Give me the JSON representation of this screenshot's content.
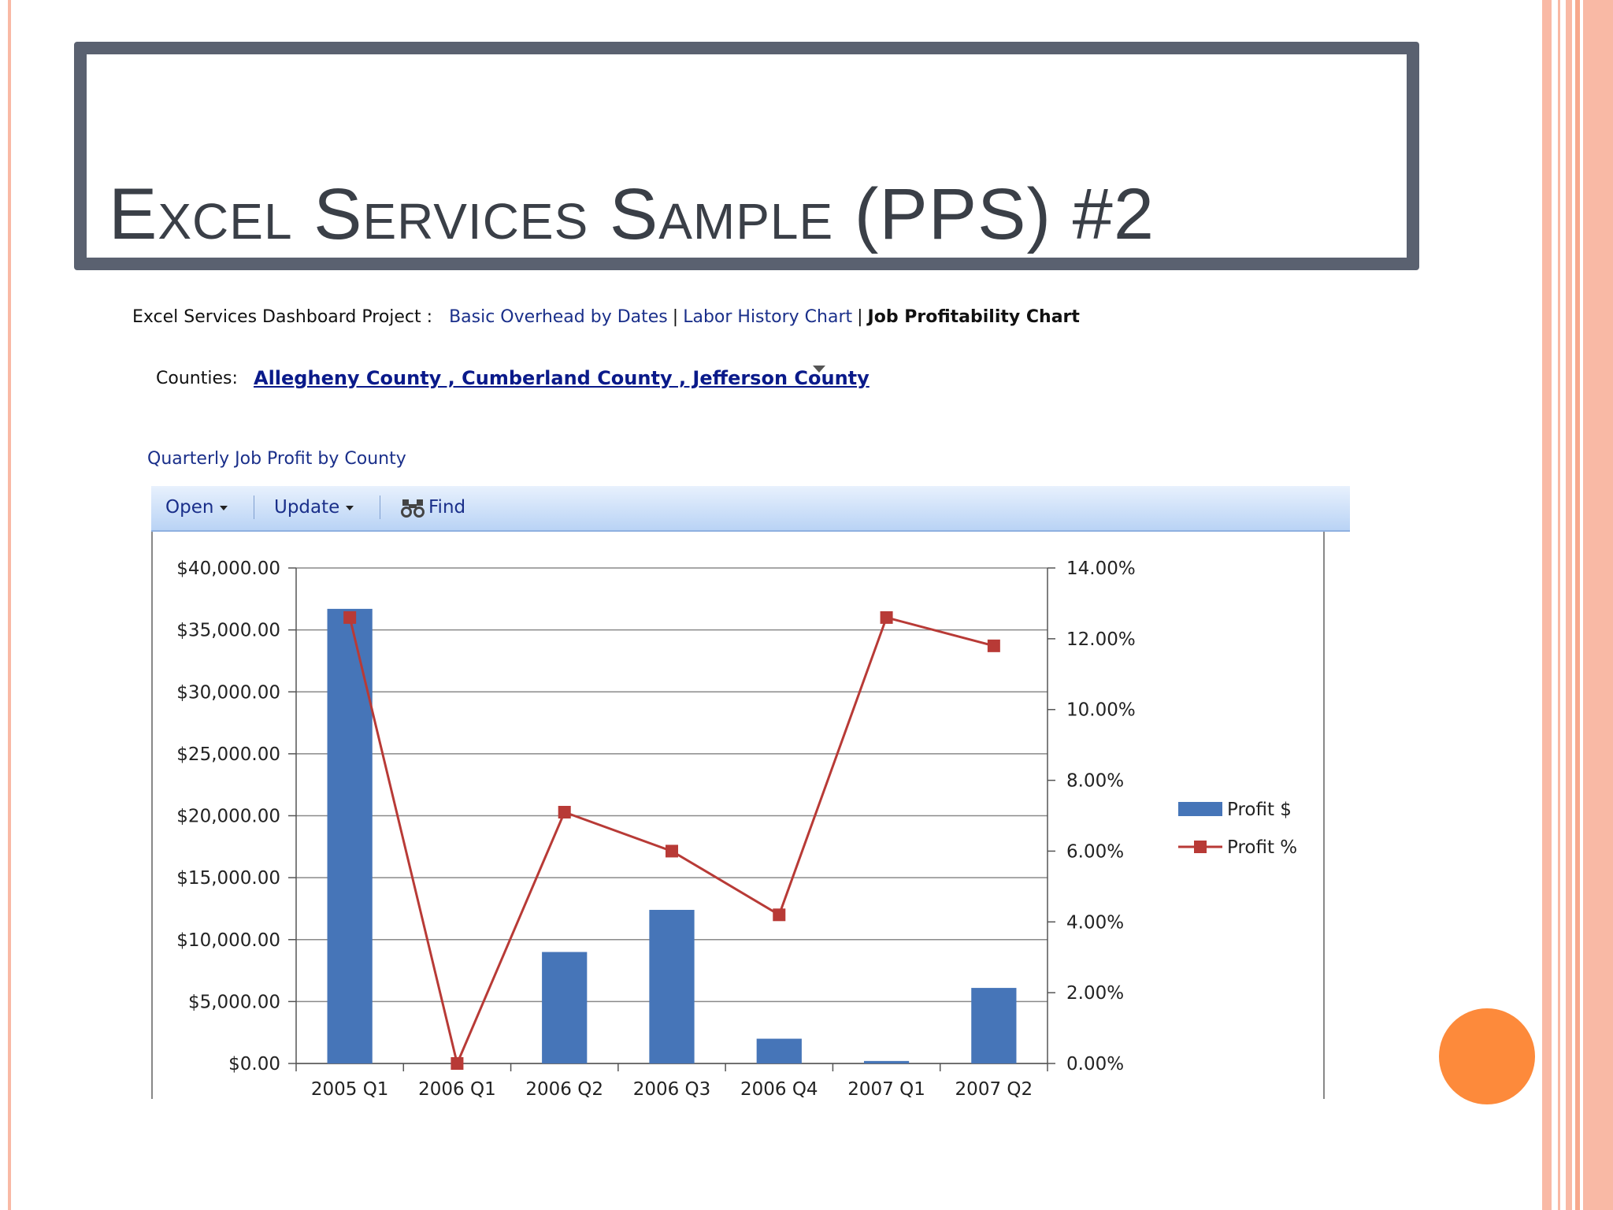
{
  "slide": {
    "title": "Excel Services Sample (PPS) #2"
  },
  "breadcrumb": {
    "prefix": "Excel Services Dashboard Project :",
    "links": [
      "Basic Overhead by Dates",
      "Labor History Chart"
    ],
    "current": "Job Profitability Chart"
  },
  "filter": {
    "label": "Counties:",
    "value": "Allegheny County , Cumberland County , Jefferson County"
  },
  "report_title": "Quarterly Job Profit by County",
  "toolbar": {
    "open_label": "Open",
    "update_label": "Update",
    "find_label": "Find"
  },
  "colors": {
    "bar": "#4675b8",
    "line": "#b83a36",
    "title_frame": "#5a6170",
    "accent_orange": "#fd8a3b",
    "stripe_salmon": "#f9b9a5"
  },
  "chart_data": {
    "type": "bar",
    "categories": [
      "2005 Q1",
      "2006 Q1",
      "2006 Q2",
      "2006 Q3",
      "2006 Q4",
      "2007 Q1",
      "2007 Q2"
    ],
    "series": [
      {
        "name": "Profit $",
        "type": "bar",
        "axis": "left",
        "values": [
          36700,
          0,
          9000,
          12400,
          2000,
          200,
          6100
        ]
      },
      {
        "name": "Profit %",
        "type": "line",
        "axis": "right",
        "values": [
          12.6,
          0.0,
          7.1,
          6.0,
          4.2,
          12.6,
          11.8
        ]
      }
    ],
    "y_left": {
      "ylim": [
        0,
        40000
      ],
      "ticks": [
        "$0.00",
        "$5,000.00",
        "$10,000.00",
        "$15,000.00",
        "$20,000.00",
        "$25,000.00",
        "$30,000.00",
        "$35,000.00",
        "$40,000.00"
      ]
    },
    "y_right": {
      "ylim": [
        0,
        14
      ],
      "ticks": [
        "0.00%",
        "2.00%",
        "4.00%",
        "6.00%",
        "8.00%",
        "10.00%",
        "12.00%",
        "14.00%"
      ]
    },
    "grid": true,
    "legend": "right"
  }
}
